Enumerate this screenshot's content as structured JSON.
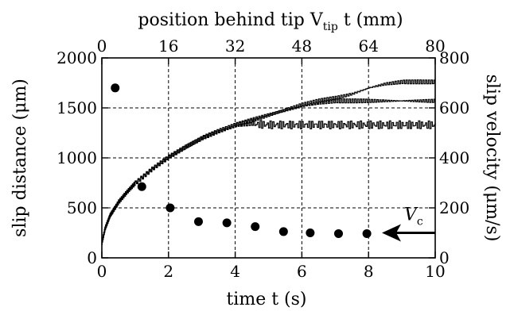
{
  "chart_data": {
    "type": "scatter",
    "x_axis_bottom": {
      "label": "time t (s)",
      "lim": [
        0,
        10
      ],
      "ticks": [
        0,
        2,
        4,
        6,
        8,
        10
      ]
    },
    "x_axis_top": {
      "label": "position behind tip V",
      "label_sub": "tip",
      "label_tail": " t (mm)",
      "lim": [
        0,
        80
      ],
      "ticks": [
        0,
        16,
        32,
        48,
        64,
        80
      ]
    },
    "y_axis_left": {
      "label": "slip distance (μm)",
      "lim": [
        0,
        2000
      ],
      "ticks": [
        0,
        500,
        1000,
        1500,
        2000
      ]
    },
    "y_axis_right": {
      "label": "slip velocity (μm/s)",
      "lim": [
        0,
        800
      ],
      "ticks": [
        0,
        200,
        400,
        600,
        800
      ]
    },
    "grid": "dashed at inner ticks",
    "series": [
      {
        "kind": "line",
        "axis": "left",
        "x": [
          0,
          0.1,
          0.25,
          0.5,
          0.75,
          1,
          1.5,
          2,
          2.5,
          3,
          3.5,
          4,
          4.5,
          5,
          5.5,
          6,
          6.5,
          7,
          7.5,
          8,
          8.5,
          9,
          9.5,
          10
        ],
        "y": [
          150,
          300,
          430,
          560,
          660,
          750,
          890,
          1010,
          1110,
          1200,
          1270,
          1330,
          1380,
          1430,
          1480,
          1530,
          1570,
          1600,
          1640,
          1700,
          1740,
          1760,
          1760,
          1760
        ]
      },
      {
        "kind": "line",
        "axis": "left",
        "x": [
          0,
          0.1,
          0.25,
          0.5,
          0.75,
          1,
          1.5,
          2,
          2.5,
          3,
          3.5,
          4,
          4.5,
          5,
          5.5,
          6,
          6.5,
          7,
          7.5,
          8,
          8.5,
          9,
          9.5,
          10
        ],
        "y": [
          150,
          300,
          430,
          560,
          660,
          750,
          890,
          1010,
          1110,
          1200,
          1270,
          1330,
          1380,
          1430,
          1480,
          1520,
          1550,
          1570,
          1570,
          1570,
          1570,
          1570,
          1570,
          1570
        ]
      },
      {
        "kind": "line",
        "axis": "left",
        "x": [
          0,
          0.1,
          0.25,
          0.5,
          0.75,
          1,
          1.5,
          2,
          2.5,
          3,
          3.5,
          4,
          4.5,
          5,
          5.5,
          6,
          6.5,
          7,
          7.5,
          8,
          8.5,
          9,
          9.5,
          10
        ],
        "y": [
          150,
          300,
          430,
          560,
          660,
          750,
          890,
          1010,
          1110,
          1200,
          1270,
          1320,
          1340,
          1330,
          1330,
          1330,
          1330,
          1330,
          1330,
          1330,
          1330,
          1330,
          1330,
          1330
        ]
      },
      {
        "kind": "points",
        "axis": "right",
        "x": [
          0.4,
          1.2,
          2.05,
          2.9,
          3.75,
          4.6,
          5.45,
          6.25,
          7.1,
          7.95
        ],
        "y": [
          680,
          285,
          200,
          145,
          140,
          125,
          105,
          100,
          97,
          97
        ]
      }
    ],
    "annotation": {
      "label": "V",
      "label_sub": "c",
      "at_x": 9.3,
      "at_y_right": 100
    }
  }
}
